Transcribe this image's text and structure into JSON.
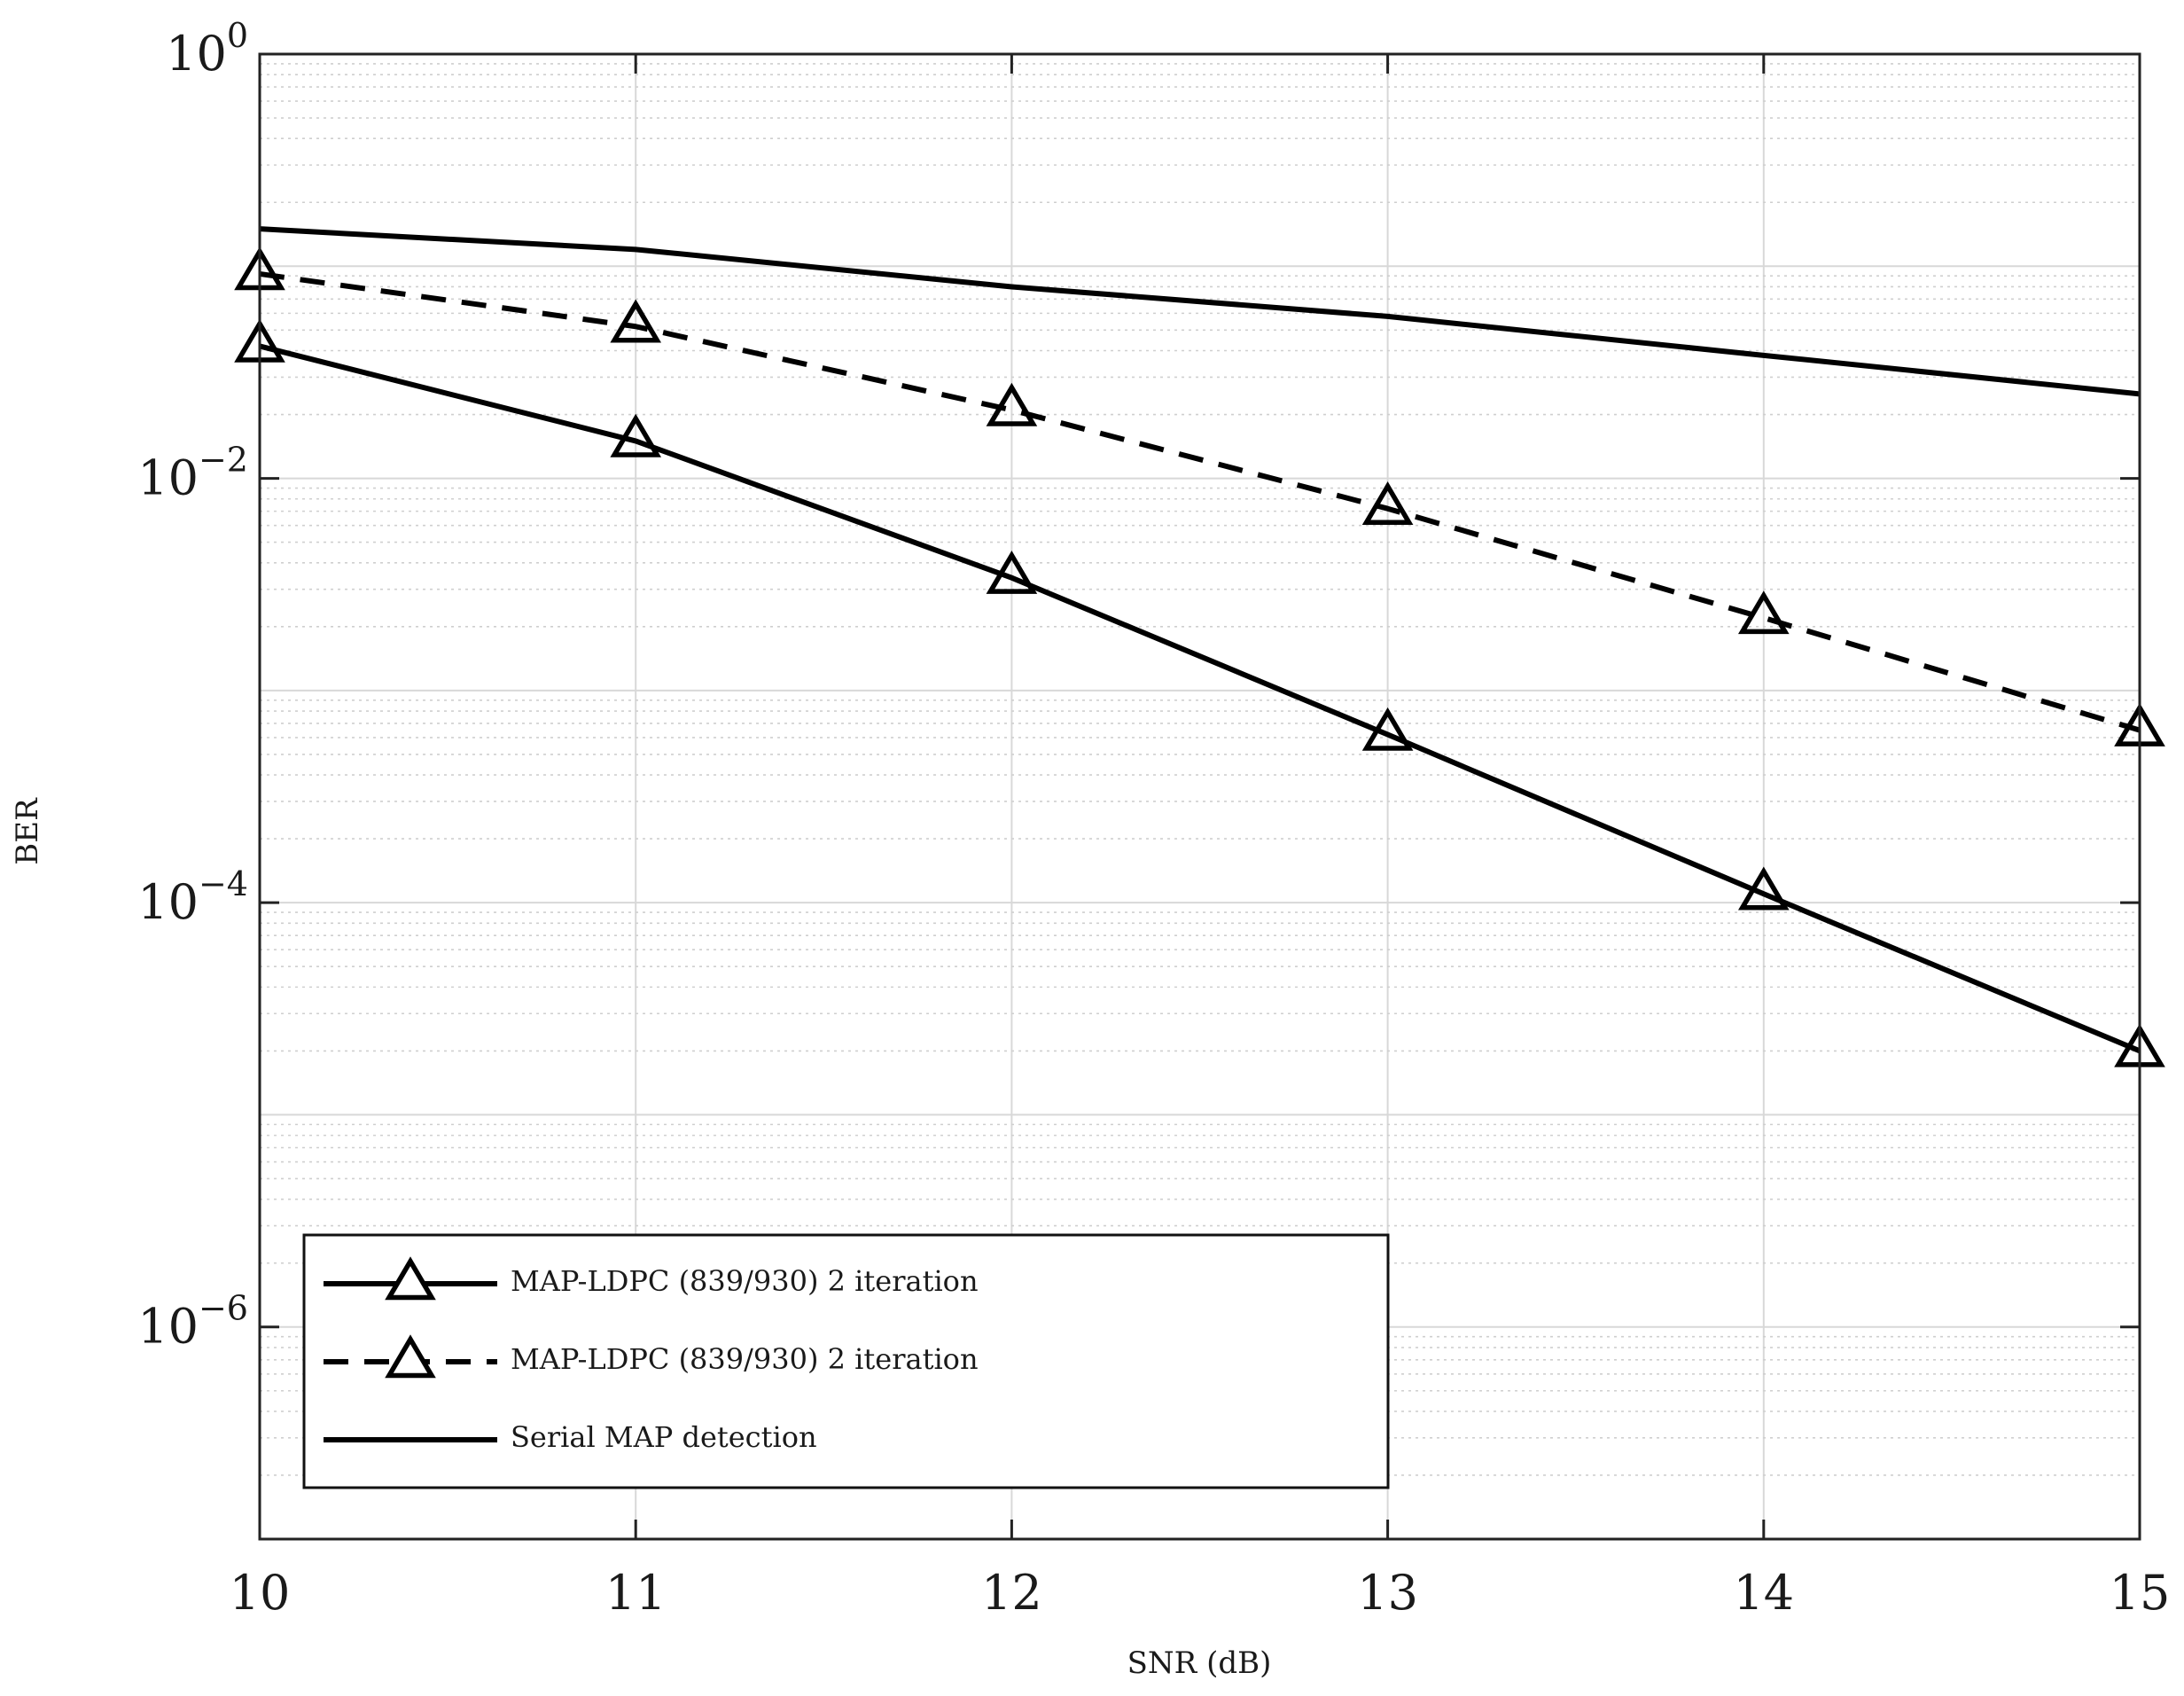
{
  "chart_data": {
    "type": "line",
    "title": "",
    "xlabel": "SNR (dB)",
    "ylabel": "BER",
    "xlim": [
      10,
      15
    ],
    "ylim": [
      1e-07,
      1
    ],
    "yscale": "log",
    "grid": true,
    "minor_grid": true,
    "legend_position": "bottom-left",
    "x_ticks": [
      10,
      11,
      12,
      13,
      14,
      15
    ],
    "y_ticks": [
      {
        "base": "10",
        "exp": "0",
        "value": 1
      },
      {
        "base": "10",
        "exp": "−2",
        "value": 0.01
      },
      {
        "base": "10",
        "exp": "−4",
        "value": 0.0001
      },
      {
        "base": "10",
        "exp": "−6",
        "value": 1e-06
      }
    ],
    "series": [
      {
        "name": "MAP-LDPC (839/930) 2 iteration",
        "style": "solid",
        "marker": "triangle",
        "color": "#000000",
        "x": [
          10,
          11,
          12,
          13,
          14,
          15
        ],
        "y": [
          0.042,
          0.015,
          0.0034,
          0.00062,
          0.00011,
          2e-05
        ]
      },
      {
        "name": "MAP-LDPC (839/930) 2 iteration",
        "style": "dashed",
        "marker": "triangle",
        "color": "#000000",
        "x": [
          10,
          11,
          12,
          13,
          14,
          15
        ],
        "y": [
          0.092,
          0.052,
          0.021,
          0.0072,
          0.0022,
          0.00065
        ]
      },
      {
        "name": "Serial MAP detection",
        "style": "solid",
        "marker": "none",
        "color": "#000000",
        "x": [
          10,
          11,
          12,
          13,
          14,
          15
        ],
        "y": [
          0.15,
          0.12,
          0.08,
          0.058,
          0.038,
          0.025
        ]
      }
    ]
  }
}
